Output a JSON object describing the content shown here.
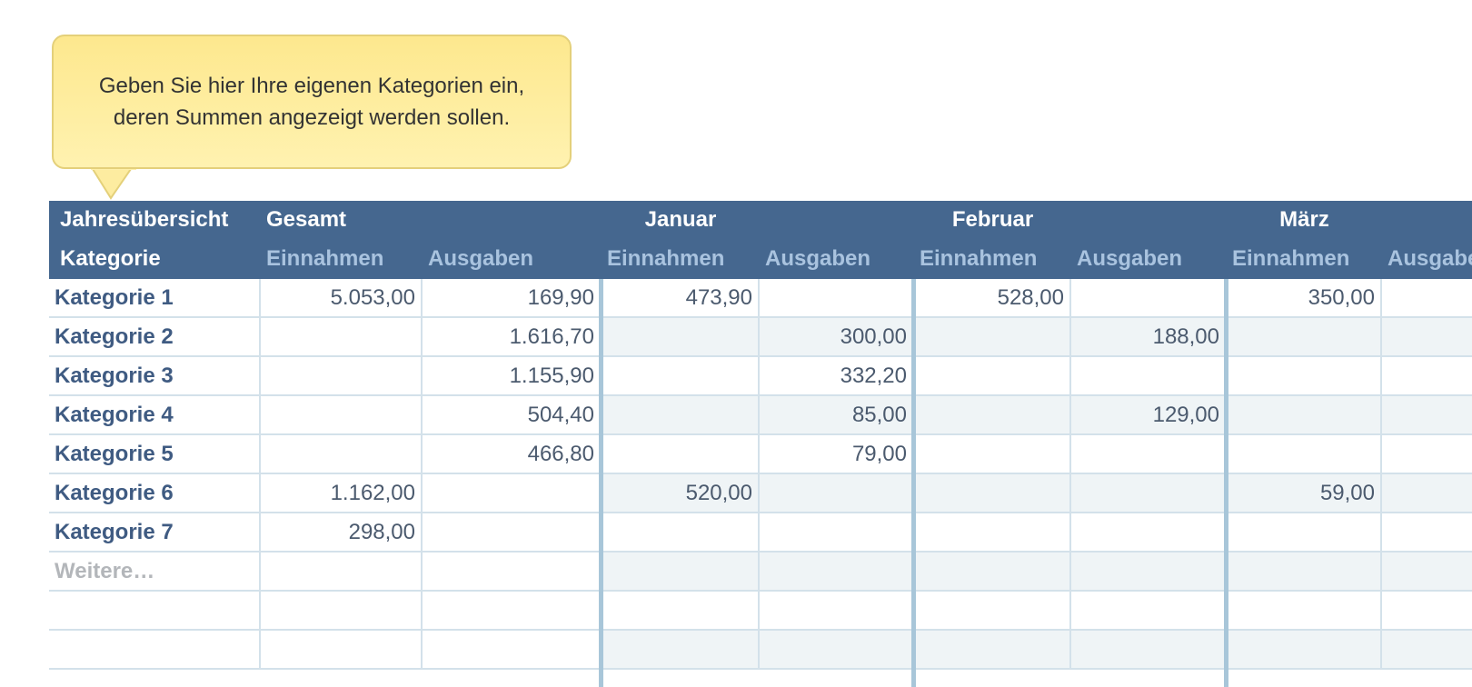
{
  "tooltip": {
    "lines": [
      "Geben Sie hier Ihre eigenen Kategorien ein,",
      "deren Summen angezeigt werden sollen."
    ]
  },
  "table": {
    "header": {
      "title": "Jahresübersicht",
      "total": "Gesamt",
      "months": [
        "Januar",
        "Februar",
        "März"
      ],
      "subheader": [
        "Kategorie",
        "Einnahmen",
        "Ausgaben",
        "Einnahmen",
        "Ausgaben",
        "Einnahmen",
        "Ausgaben",
        "Einnahmen",
        "Ausgaben"
      ]
    },
    "rows": [
      {
        "label": "Kategorie 1",
        "cells": [
          "5.053,00",
          "169,90",
          "473,90",
          null,
          "528,00",
          null,
          "350,00",
          null
        ]
      },
      {
        "label": "Kategorie 2",
        "cells": [
          null,
          "1.616,70",
          null,
          "300,00",
          null,
          "188,00",
          null,
          null
        ]
      },
      {
        "label": "Kategorie 3",
        "cells": [
          null,
          "1.155,90",
          null,
          "332,20",
          null,
          null,
          null,
          null
        ]
      },
      {
        "label": "Kategorie 4",
        "cells": [
          null,
          "504,40",
          null,
          "85,00",
          null,
          "129,00",
          null,
          null
        ]
      },
      {
        "label": "Kategorie 5",
        "cells": [
          null,
          "466,80",
          null,
          "79,00",
          null,
          null,
          null,
          null
        ]
      },
      {
        "label": "Kategorie 6",
        "cells": [
          "1.162,00",
          null,
          "520,00",
          null,
          null,
          null,
          "59,00",
          null
        ]
      },
      {
        "label": "Kategorie 7",
        "cells": [
          "298,00",
          null,
          null,
          null,
          null,
          null,
          null,
          null
        ]
      },
      {
        "label": "Weitere…",
        "cells": [
          null,
          null,
          null,
          null,
          null,
          null,
          null,
          null
        ]
      },
      {
        "label": null,
        "cells": [
          null,
          null,
          null,
          null,
          null,
          null,
          null,
          null
        ]
      },
      {
        "label": null,
        "cells": [
          null,
          null,
          null,
          null,
          null,
          null,
          null,
          null
        ]
      }
    ]
  }
}
